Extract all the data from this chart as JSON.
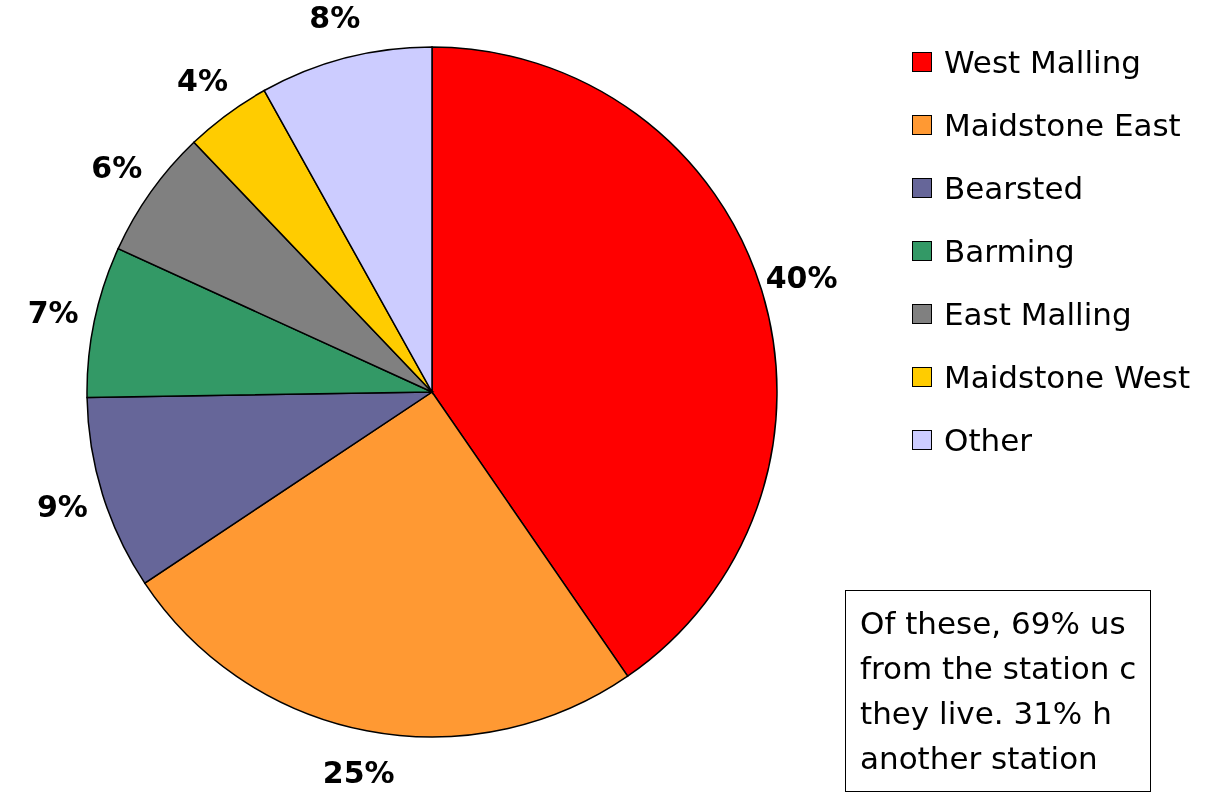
{
  "chart_data": {
    "type": "pie",
    "categories": [
      "West Malling",
      "Maidstone East",
      "Bearsted",
      "Barming",
      "East Malling",
      "Maidstone West",
      "Other"
    ],
    "values": [
      40,
      25,
      9,
      7,
      6,
      4,
      8
    ],
    "colors": [
      "#ff0000",
      "#ff9933",
      "#666699",
      "#339966",
      "#808080",
      "#ffcc00",
      "#ccccff"
    ],
    "value_labels": [
      "40%",
      "25%",
      "9%",
      "7%",
      "6%",
      "4%",
      "8%"
    ],
    "legend": "right",
    "annotations": [
      "Of these, 69% us",
      "from the station c",
      "they live.  31% h",
      "another station"
    ]
  }
}
